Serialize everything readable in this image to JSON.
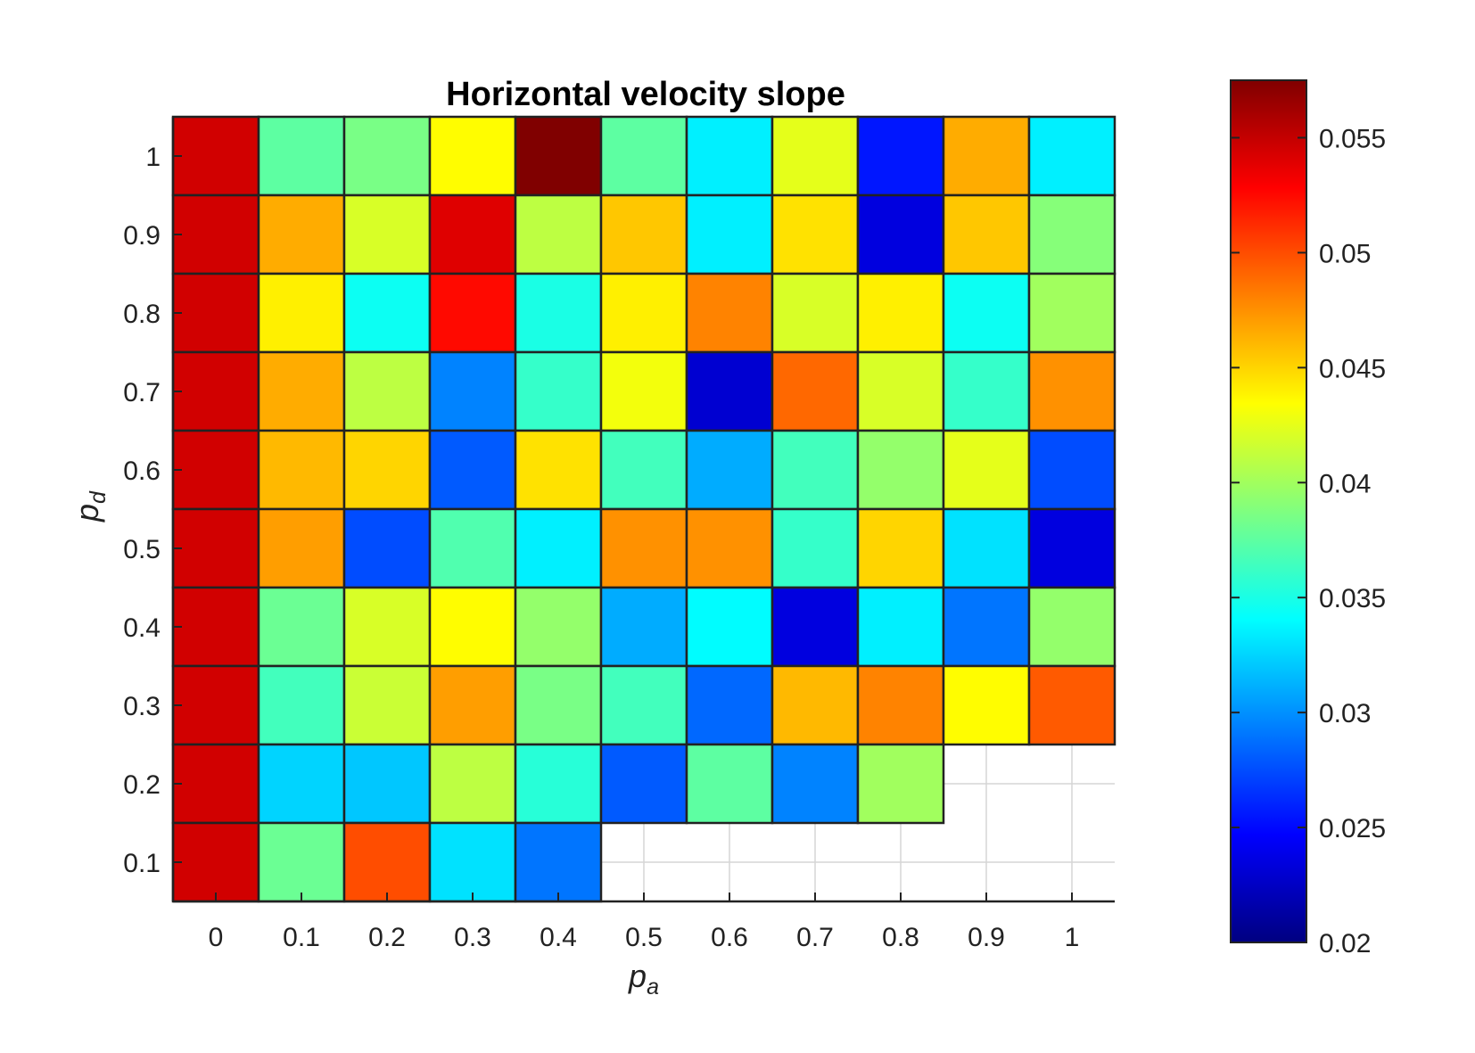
{
  "chart_data": {
    "type": "heatmap",
    "title": "Horizontal velocity slope",
    "xlabel_base": "p",
    "xlabel_sub": "a",
    "ylabel_base": "p",
    "ylabel_sub": "d",
    "x_ticks": [
      "0",
      "0.1",
      "0.2",
      "0.3",
      "0.4",
      "0.5",
      "0.6",
      "0.7",
      "0.8",
      "0.9",
      "1"
    ],
    "y_ticks": [
      "0.1",
      "0.2",
      "0.3",
      "0.4",
      "0.5",
      "0.6",
      "0.7",
      "0.8",
      "0.9",
      "1"
    ],
    "x": [
      0,
      0.1,
      0.2,
      0.3,
      0.4,
      0.5,
      0.6,
      0.7,
      0.8,
      0.9,
      1
    ],
    "y": [
      1,
      0.9,
      0.8,
      0.7,
      0.6,
      0.5,
      0.4,
      0.3,
      0.2,
      0.1
    ],
    "values": [
      [
        0.0545,
        0.0375,
        0.0385,
        0.0435,
        0.0575,
        0.0375,
        0.0335,
        0.0425,
        0.0255,
        0.0465,
        0.0335
      ],
      [
        0.0545,
        0.0465,
        0.042,
        0.054,
        0.041,
        0.0455,
        0.0335,
        0.0445,
        0.0235,
        0.0455,
        0.039
      ],
      [
        0.0545,
        0.044,
        0.0345,
        0.0525,
        0.035,
        0.044,
        0.048,
        0.042,
        0.044,
        0.0345,
        0.04
      ],
      [
        0.0545,
        0.0465,
        0.041,
        0.0295,
        0.036,
        0.043,
        0.023,
        0.049,
        0.042,
        0.036,
        0.0475
      ],
      [
        0.0545,
        0.046,
        0.045,
        0.028,
        0.0445,
        0.0365,
        0.031,
        0.0365,
        0.0395,
        0.0425,
        0.0275
      ],
      [
        0.0545,
        0.047,
        0.0275,
        0.037,
        0.0335,
        0.0475,
        0.0475,
        0.036,
        0.045,
        0.033,
        0.0235
      ],
      [
        0.0545,
        0.038,
        0.042,
        0.0435,
        0.0395,
        0.031,
        0.034,
        0.0235,
        0.0335,
        0.029,
        0.0395
      ],
      [
        0.0545,
        0.0365,
        0.0415,
        0.047,
        0.0385,
        0.0365,
        0.0285,
        0.046,
        0.048,
        0.0435,
        0.0495
      ],
      [
        0.0545,
        0.0325,
        0.032,
        0.041,
        0.0355,
        0.028,
        0.0375,
        0.0295,
        0.04,
        null,
        null
      ],
      [
        0.0545,
        0.038,
        0.05,
        0.033,
        0.029,
        null,
        null,
        null,
        null,
        null,
        null
      ]
    ],
    "colormap": "jet",
    "clim": [
      0.02,
      0.0575
    ],
    "colorbar_ticks": [
      "0.055",
      "0.05",
      "0.045",
      "0.04",
      "0.035",
      "0.03",
      "0.025",
      "0.02"
    ],
    "colorbar_values": [
      0.055,
      0.05,
      0.045,
      0.04,
      0.035,
      0.03,
      0.025,
      0.02
    ],
    "grid": true,
    "colorbar": "right"
  }
}
